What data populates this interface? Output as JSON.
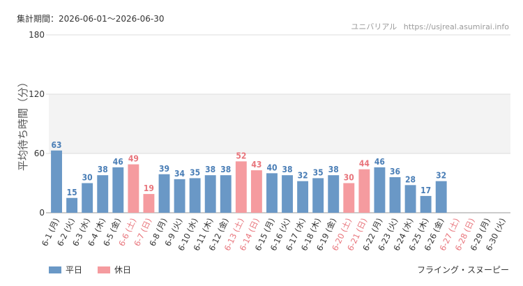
{
  "header": {
    "period_label": "集計期間：2026-06-01～2026-06-30",
    "site_name": "ユニバリアル",
    "site_url": "https://usjreal.asumirai.info"
  },
  "footer": {
    "attraction_name": "フライング・スヌーピー"
  },
  "colors": {
    "weekday": "#6a98c6",
    "holiday": "#f59b9f",
    "weekday_label": "#4a7eb6",
    "holiday_label": "#e8757c",
    "band": "#f3f3f3"
  },
  "chart_data": {
    "type": "bar",
    "title": "",
    "xlabel": "",
    "ylabel": "平均待ち時間（分）",
    "ylim": [
      0,
      180
    ],
    "yticks": [
      0,
      60,
      120,
      180
    ],
    "legend": [
      {
        "name": "平日",
        "kind": "weekday"
      },
      {
        "name": "休日",
        "kind": "holiday"
      }
    ],
    "legend_position": "bottom-left",
    "categories": [
      "6-1 (月)",
      "6-2 (火)",
      "6-3 (水)",
      "6-4 (木)",
      "6-5 (金)",
      "6-6 (土)",
      "6-7 (日)",
      "6-8 (月)",
      "6-9 (火)",
      "6-10 (水)",
      "6-11 (木)",
      "6-12 (金)",
      "6-13 (土)",
      "6-14 (日)",
      "6-15 (月)",
      "6-16 (火)",
      "6-17 (水)",
      "6-18 (木)",
      "6-19 (金)",
      "6-20 (土)",
      "6-21 (日)",
      "6-22 (月)",
      "6-23 (火)",
      "6-24 (水)",
      "6-25 (木)",
      "6-26 (金)",
      "6-27 (土)",
      "6-28 (日)",
      "6-29 (月)",
      "6-30 (火)"
    ],
    "day_type": [
      "weekday",
      "weekday",
      "weekday",
      "weekday",
      "weekday",
      "holiday",
      "holiday",
      "weekday",
      "weekday",
      "weekday",
      "weekday",
      "weekday",
      "holiday",
      "holiday",
      "weekday",
      "weekday",
      "weekday",
      "weekday",
      "weekday",
      "holiday",
      "holiday",
      "weekday",
      "weekday",
      "weekday",
      "weekday",
      "weekday",
      "holiday",
      "holiday",
      "weekday",
      "weekday"
    ],
    "values": [
      63,
      15,
      30,
      38,
      46,
      49,
      19,
      39,
      34,
      35,
      38,
      38,
      52,
      43,
      40,
      38,
      32,
      35,
      38,
      30,
      44,
      46,
      36,
      28,
      17,
      32,
      null,
      null,
      null,
      null
    ]
  }
}
